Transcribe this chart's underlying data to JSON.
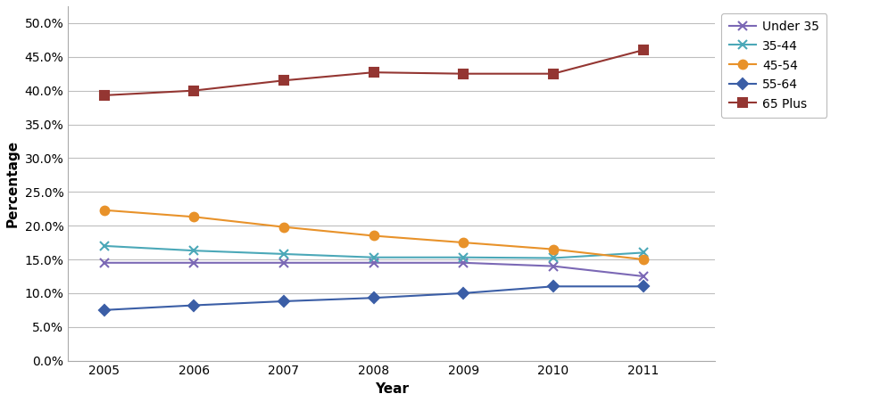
{
  "years": [
    2005,
    2006,
    2007,
    2008,
    2009,
    2010,
    2011
  ],
  "series": [
    {
      "label": "Under 35",
      "values": [
        0.145,
        0.145,
        0.145,
        0.145,
        0.145,
        0.14,
        0.125
      ],
      "color": "#7B68B5",
      "marker": "x",
      "markersize": 7,
      "markerfilled": false
    },
    {
      "label": "35-44",
      "values": [
        0.17,
        0.163,
        0.158,
        0.153,
        0.153,
        0.152,
        0.16
      ],
      "color": "#4BA8B8",
      "marker": "x",
      "markersize": 7,
      "markerfilled": false
    },
    {
      "label": "45-54",
      "values": [
        0.223,
        0.213,
        0.198,
        0.185,
        0.175,
        0.165,
        0.15
      ],
      "color": "#E8922A",
      "marker": "o",
      "markersize": 7,
      "markerfilled": true
    },
    {
      "label": "55-64",
      "values": [
        0.075,
        0.082,
        0.088,
        0.093,
        0.1,
        0.11,
        0.11
      ],
      "color": "#3B5EA6",
      "marker": "D",
      "markersize": 6,
      "markerfilled": true
    },
    {
      "label": "65 Plus",
      "values": [
        0.393,
        0.4,
        0.415,
        0.427,
        0.425,
        0.425,
        0.46
      ],
      "color": "#943632",
      "marker": "s",
      "markersize": 7,
      "markerfilled": true
    }
  ],
  "xlabel": "Year",
  "ylabel": "Percentage",
  "ylim": [
    0.0,
    0.525
  ],
  "yticks": [
    0.0,
    0.05,
    0.1,
    0.15,
    0.2,
    0.25,
    0.3,
    0.35,
    0.4,
    0.45,
    0.5
  ],
  "background_color": "#ffffff",
  "grid_color": "#BEBEBE",
  "spine_color": "#AAAAAA",
  "linewidth": 1.5
}
